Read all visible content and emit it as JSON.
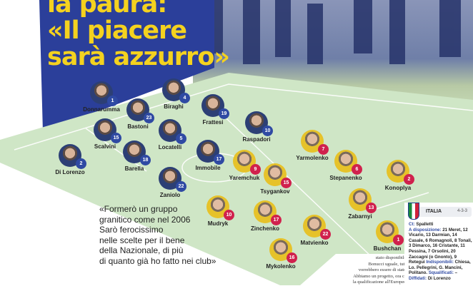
{
  "headline": {
    "line1": "la paura:",
    "line2": "«Il piacere",
    "line3": "sarà azzurro»"
  },
  "quote": {
    "lines": [
      "«Formerò un gruppo",
      "granitico come nel 2006",
      "Sarò ferocissimo",
      "nelle scelte per il bene",
      "della Nazionale, di più",
      "di quanto già ho fatto nei club»"
    ]
  },
  "italy_players": [
    {
      "name": "Donnarumma",
      "number": "1"
    },
    {
      "name": "Biraghi",
      "number": "4"
    },
    {
      "name": "Bastoni",
      "number": "23"
    },
    {
      "name": "Frattesi",
      "number": "19"
    },
    {
      "name": "Scalvini",
      "number": "15"
    },
    {
      "name": "Locatelli",
      "number": "5"
    },
    {
      "name": "Di Lorenzo",
      "number": "2"
    },
    {
      "name": "Barella",
      "number": "18"
    },
    {
      "name": "Immobile",
      "number": "17"
    },
    {
      "name": "Zaniolo",
      "number": "22"
    },
    {
      "name": "Raspadori",
      "number": "10"
    }
  ],
  "ukraine_players": [
    {
      "name": "Yarmolenko",
      "number": "7"
    },
    {
      "name": "Yaremchuk",
      "number": "9"
    },
    {
      "name": "Tsygankov",
      "number": "15"
    },
    {
      "name": "Stepanenko",
      "number": "6"
    },
    {
      "name": "Konoplya",
      "number": "2"
    },
    {
      "name": "Zabarnyi",
      "number": "13"
    },
    {
      "name": "Mudryk",
      "number": "10"
    },
    {
      "name": "Zinchenko",
      "number": "17"
    },
    {
      "name": "Matvienko",
      "number": "22"
    },
    {
      "name": "Mykolenko",
      "number": "16"
    },
    {
      "name": "Bushchan",
      "number": "1"
    }
  ],
  "team_box": {
    "team": "ITALIA",
    "formation": "4-3-3",
    "ct_label": "Ct:",
    "ct": "Spalletti",
    "available_label": "A disposizione:",
    "available": "21 Meret, 12 Vicario, 13 Darmian, 14 Casale, 6 Romagnoli, 8 Tonali, 3 Dimarco, 16 Cristante, 11 Pessina, 7 Orsolini, 20 Zaccagni (o Gnonto), 9 Retegui",
    "unavailable_label": "Indisponibili:",
    "unavailable": "Chiesa, Lo. Pellegrini, G. Mancini, Politano.",
    "suspended_label": "Squalificati:",
    "suspended": "–",
    "warned_label": "Diffidati:",
    "warned": "Di Lorenzo"
  },
  "article": {
    "lines": [
      "stato disponibile.",
      "Bonucci uguale, tutti",
      "vorrebbero essere di stato.",
      "Abbiamo un progetto, ora c'è",
      "la qualificazione all'Europeo,"
    ]
  },
  "colors": {
    "headline": "#f4d21f",
    "band": "#2b3f9a",
    "italy_badge": "#2f4aa3",
    "ukraine_badge": "#d0214d",
    "pitch": "#cfe6c6"
  }
}
